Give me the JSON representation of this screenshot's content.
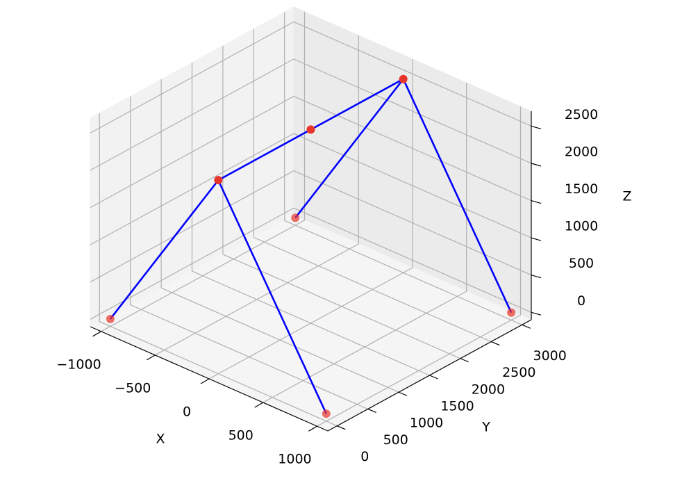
{
  "chart_data": {
    "type": "scatter3d",
    "xlabel": "X",
    "ylabel": "Y",
    "zlabel": "Z",
    "xlim": [
      -1100,
      1100
    ],
    "ylim": [
      -150,
      3150
    ],
    "zlim": [
      -100,
      2700
    ],
    "xticks": [
      {
        "value": -1000,
        "label": "−1000"
      },
      {
        "value": -500,
        "label": "−500"
      },
      0,
      500,
      1000
    ],
    "yticks": [
      0,
      500,
      1000,
      1500,
      2000,
      2500,
      3000
    ],
    "zticks": [
      0,
      500,
      1000,
      1500,
      2000,
      2500
    ],
    "grid": true,
    "points": {
      "color": "#e8352b",
      "x": [
        -1000,
        1000,
        -1000,
        1000,
        0,
        0,
        0
      ],
      "y": [
        0,
        0,
        3000,
        3000,
        0,
        1500,
        3000
      ],
      "z": [
        0,
        0,
        0,
        0,
        2500,
        2500,
        2500
      ]
    },
    "lines": [
      {
        "color": "#0000ff",
        "x": [
          -1000,
          0,
          1000
        ],
        "y": [
          0,
          0,
          0
        ],
        "z": [
          0,
          2500,
          0
        ]
      },
      {
        "color": "#0000ff",
        "x": [
          0,
          0,
          0
        ],
        "y": [
          0,
          1500,
          3000
        ],
        "z": [
          2500,
          2500,
          2500
        ]
      },
      {
        "color": "#0000ff",
        "x": [
          -1000,
          0,
          1000
        ],
        "y": [
          3000,
          3000,
          3000
        ],
        "z": [
          0,
          2500,
          0
        ]
      }
    ]
  }
}
